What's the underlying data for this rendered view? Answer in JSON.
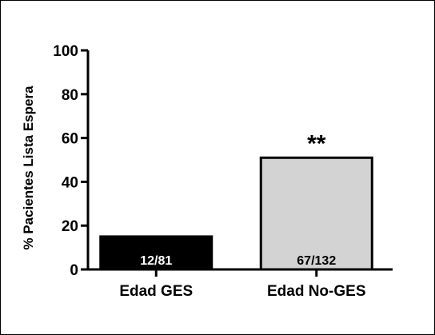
{
  "chart_data": {
    "type": "bar",
    "title": "",
    "xlabel": "",
    "ylabel": "% Pacientes Lista Espera",
    "ylim": [
      0,
      100
    ],
    "yticks": [
      0,
      20,
      40,
      60,
      80,
      100
    ],
    "grid": false,
    "legend": "none",
    "categories": [
      "Edad GES",
      "Edad No-GES"
    ],
    "values": [
      15,
      51
    ],
    "bar_labels": [
      "12/81",
      "67/132"
    ],
    "annotations": [
      {
        "category": "Edad No-GES",
        "text": "**"
      }
    ],
    "colors": {
      "bar_fill": [
        "#000000",
        "#d3d3d3"
      ],
      "bar_stroke": "#000000",
      "bar_label_text": [
        "#ffffff",
        "#000000"
      ]
    }
  }
}
